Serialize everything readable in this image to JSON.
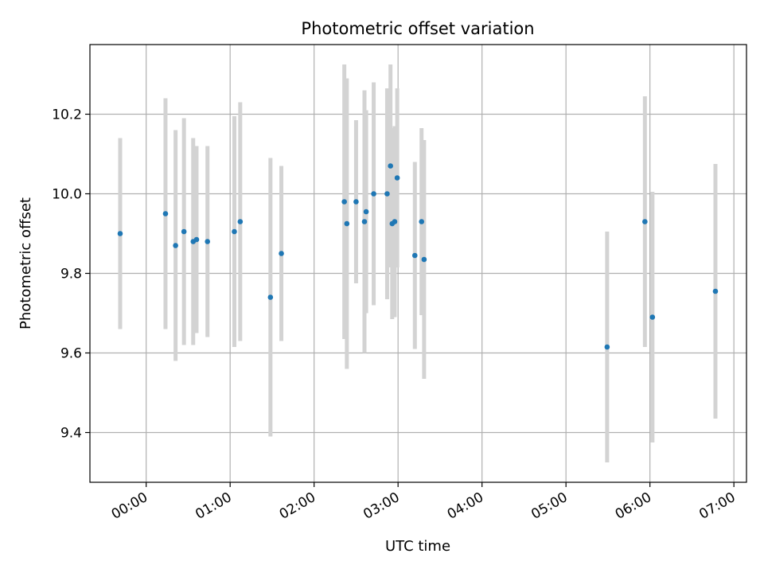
{
  "chart_data": {
    "type": "scatter",
    "title": "Photometric offset variation",
    "xlabel": "UTC time",
    "ylabel": "Photometric offset",
    "grid": true,
    "x_unit": "UTC time of day (hours)",
    "xlim": [
      -0.67,
      7.15
    ],
    "ylim": [
      9.275,
      10.375
    ],
    "x_ticks": [
      {
        "value": 0,
        "label": "00:00"
      },
      {
        "value": 1,
        "label": "01:00"
      },
      {
        "value": 2,
        "label": "02:00"
      },
      {
        "value": 3,
        "label": "03:00"
      },
      {
        "value": 4,
        "label": "04:00"
      },
      {
        "value": 5,
        "label": "05:00"
      },
      {
        "value": 6,
        "label": "06:00"
      },
      {
        "value": 7,
        "label": "07:00"
      }
    ],
    "y_ticks": [
      {
        "value": 9.4,
        "label": "9.4"
      },
      {
        "value": 9.6,
        "label": "9.6"
      },
      {
        "value": 9.8,
        "label": "9.8"
      },
      {
        "value": 10.0,
        "label": "10.0"
      },
      {
        "value": 10.2,
        "label": "10.2"
      }
    ],
    "colors": {
      "point": "#1f77b4",
      "errorbar": "#d3d3d3",
      "grid": "#b0b0b0"
    },
    "points": [
      {
        "x": -0.31,
        "y": 9.9,
        "err": 0.24
      },
      {
        "x": 0.23,
        "y": 9.95,
        "err": 0.29
      },
      {
        "x": 0.35,
        "y": 9.87,
        "err": 0.29
      },
      {
        "x": 0.45,
        "y": 9.905,
        "err": 0.285
      },
      {
        "x": 0.56,
        "y": 9.88,
        "err": 0.26
      },
      {
        "x": 0.6,
        "y": 9.885,
        "err": 0.235
      },
      {
        "x": 0.73,
        "y": 9.88,
        "err": 0.24
      },
      {
        "x": 1.05,
        "y": 9.905,
        "err": 0.29
      },
      {
        "x": 1.12,
        "y": 9.93,
        "err": 0.3
      },
      {
        "x": 1.48,
        "y": 9.74,
        "err": 0.35
      },
      {
        "x": 1.61,
        "y": 9.85,
        "err": 0.22
      },
      {
        "x": 2.36,
        "y": 9.98,
        "err": 0.345
      },
      {
        "x": 2.39,
        "y": 9.925,
        "err": 0.365
      },
      {
        "x": 2.5,
        "y": 9.98,
        "err": 0.205
      },
      {
        "x": 2.6,
        "y": 9.93,
        "err": 0.33
      },
      {
        "x": 2.62,
        "y": 9.955,
        "err": 0.255
      },
      {
        "x": 2.71,
        "y": 10.0,
        "err": 0.28
      },
      {
        "x": 2.87,
        "y": 10.0,
        "err": 0.265
      },
      {
        "x": 2.91,
        "y": 10.07,
        "err": 0.255
      },
      {
        "x": 2.93,
        "y": 9.925,
        "err": 0.24
      },
      {
        "x": 2.96,
        "y": 9.93,
        "err": 0.24
      },
      {
        "x": 2.99,
        "y": 10.04,
        "err": 0.225
      },
      {
        "x": 3.2,
        "y": 9.845,
        "err": 0.235
      },
      {
        "x": 3.28,
        "y": 9.93,
        "err": 0.235
      },
      {
        "x": 3.31,
        "y": 9.835,
        "err": 0.3
      },
      {
        "x": 5.49,
        "y": 9.615,
        "err": 0.29
      },
      {
        "x": 5.94,
        "y": 9.93,
        "err": 0.315
      },
      {
        "x": 6.03,
        "y": 9.69,
        "err": 0.315
      },
      {
        "x": 6.78,
        "y": 9.755,
        "err": 0.32
      }
    ]
  }
}
